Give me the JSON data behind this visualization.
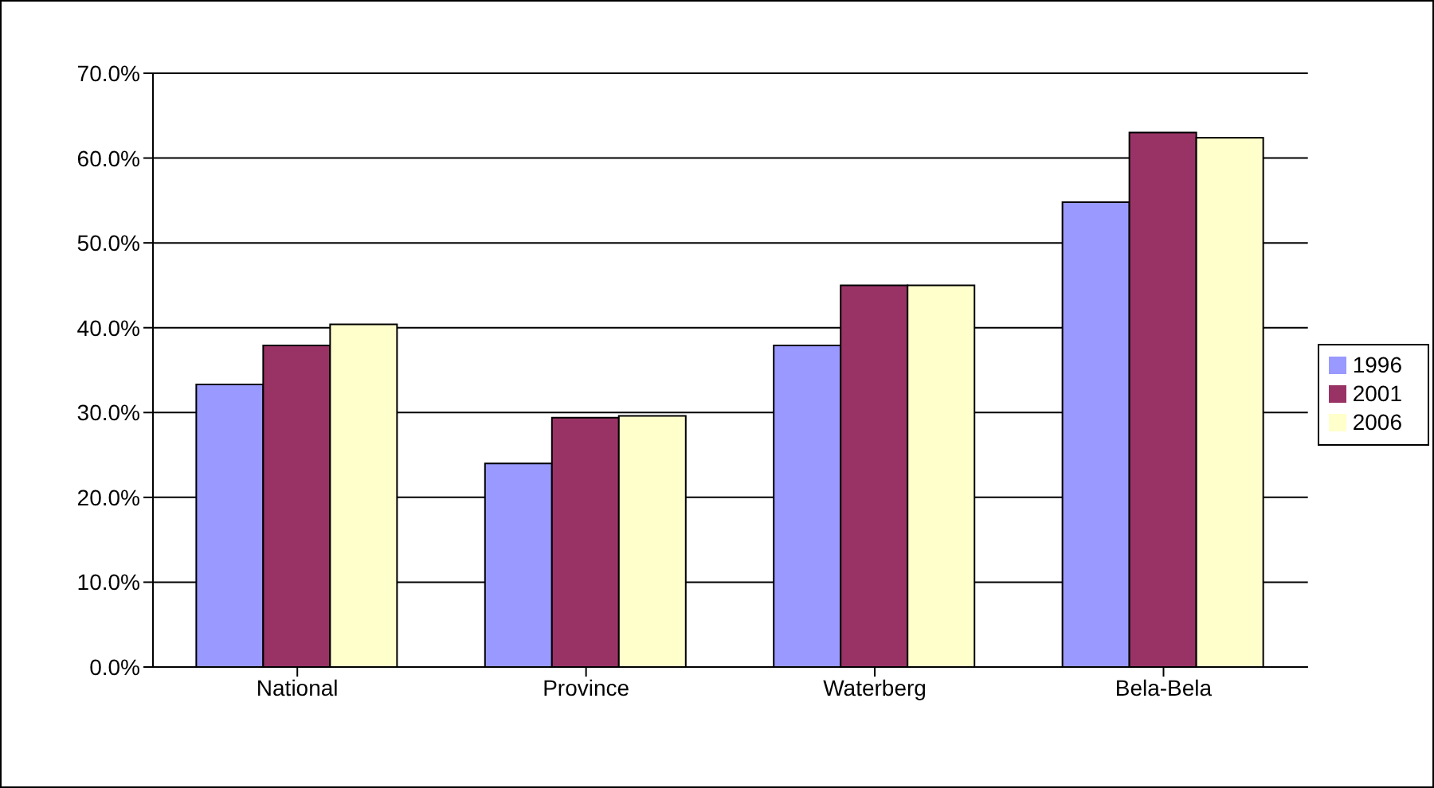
{
  "chart_data": {
    "type": "bar",
    "categories": [
      "National",
      "Province",
      "Waterberg",
      "Bela-Bela"
    ],
    "series": [
      {
        "name": "1996",
        "color": "#9999ff",
        "values": [
          33.3,
          24.0,
          37.9,
          54.8
        ]
      },
      {
        "name": "2001",
        "color": "#993366",
        "values": [
          37.9,
          29.4,
          45.0,
          63.0
        ]
      },
      {
        "name": "2006",
        "color": "#ffffcc",
        "values": [
          40.4,
          29.6,
          45.0,
          62.4
        ]
      }
    ],
    "ylim": [
      0,
      70
    ],
    "yticks": [
      {
        "value": 0,
        "label": "0.0%"
      },
      {
        "value": 10,
        "label": "10.0%"
      },
      {
        "value": 20,
        "label": "20.0%"
      },
      {
        "value": 30,
        "label": "30.0%"
      },
      {
        "value": 40,
        "label": "40.0%"
      },
      {
        "value": 50,
        "label": "50.0%"
      },
      {
        "value": 60,
        "label": "60.0%"
      },
      {
        "value": 70,
        "label": "70.0%"
      }
    ],
    "grid": "y",
    "legend": "right"
  }
}
